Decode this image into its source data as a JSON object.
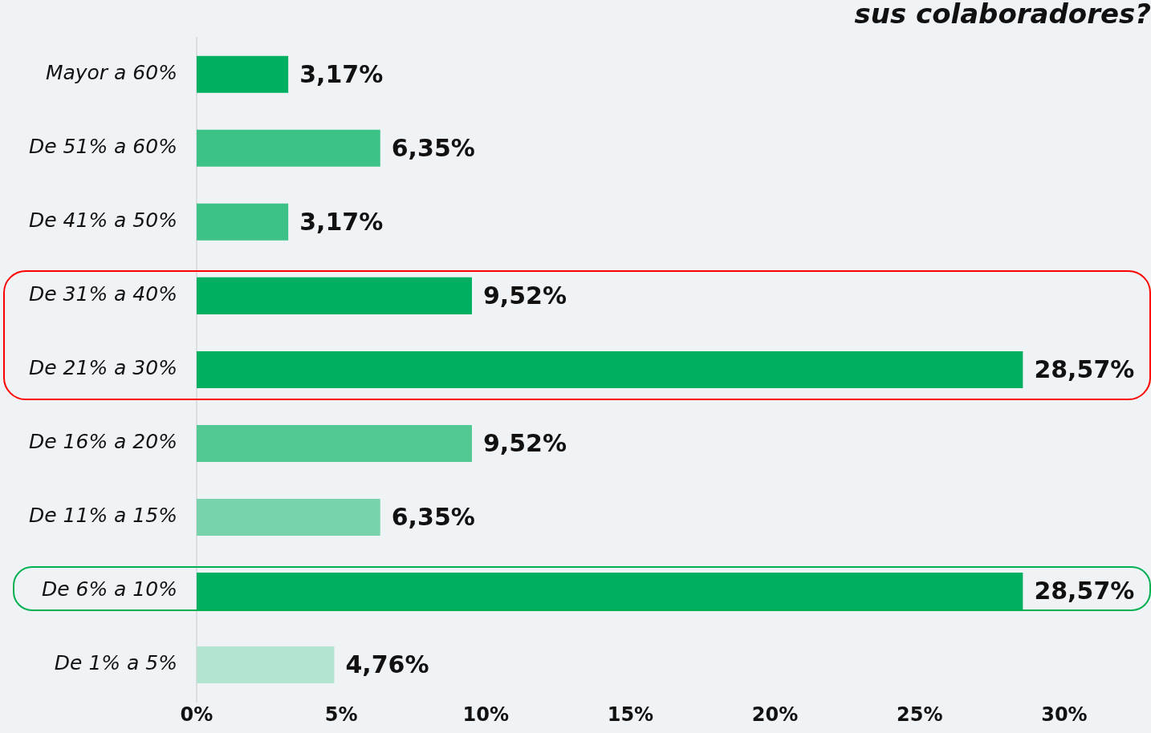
{
  "chart_data": {
    "type": "bar",
    "orientation": "horizontal",
    "title": "sus colaboradores?",
    "categories": [
      "Mayor a 60%",
      "De 51% a 60%",
      "De 41% a 50%",
      "De 31% a 40%",
      "De 21% a 30%",
      "De 16% a 20%",
      "De 11% a 15%",
      "De 6% a 10%",
      "De 1% a 5%"
    ],
    "values": [
      3.17,
      6.35,
      3.17,
      9.52,
      28.57,
      9.52,
      6.35,
      28.57,
      4.76
    ],
    "value_labels": [
      "3,17%",
      "6,35%",
      "3,17%",
      "9,52%",
      "28,57%",
      "9,52%",
      "6,35%",
      "28,57%",
      "4,76%"
    ],
    "colors": [
      "#00b060",
      "#3cc187",
      "#3cc187",
      "#00b060",
      "#00b060",
      "#52c892",
      "#78d2ab",
      "#00b060",
      "#b3e3d1"
    ],
    "xlim": [
      0,
      33
    ],
    "xticks": [
      {
        "value": 0,
        "label": "0%"
      },
      {
        "value": 5,
        "label": "5%"
      },
      {
        "value": 10,
        "label": "10%"
      },
      {
        "value": 15,
        "label": "15%"
      },
      {
        "value": 20,
        "label": "20%"
      },
      {
        "value": 25,
        "label": "25%"
      },
      {
        "value": 30,
        "label": "30%"
      }
    ],
    "grid": false,
    "legend": false
  }
}
